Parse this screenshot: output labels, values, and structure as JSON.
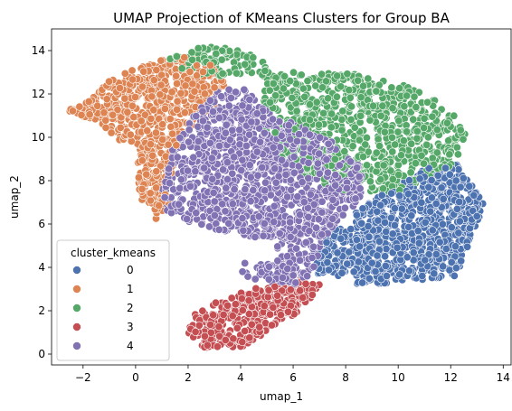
{
  "chart_data": {
    "type": "scatter",
    "title": "UMAP Projection of KMeans Clusters for Group BA",
    "xlabel": "umap_1",
    "ylabel": "umap_2",
    "xlim": [
      -3.2,
      14.3
    ],
    "ylim": [
      -0.5,
      15.0
    ],
    "xticks": [
      -2,
      0,
      2,
      4,
      6,
      8,
      10,
      12,
      14
    ],
    "yticks": [
      0,
      2,
      4,
      6,
      8,
      10,
      12,
      14
    ],
    "grid": false,
    "legend": {
      "title": "cluster_kmeans",
      "placement": "lower-left"
    },
    "series": [
      {
        "name": "0",
        "color": "#4c72b0"
      },
      {
        "name": "1",
        "color": "#dd8452"
      },
      {
        "name": "2",
        "color": "#55a868"
      },
      {
        "name": "3",
        "color": "#c44e52"
      },
      {
        "name": "4",
        "color": "#8172b3"
      }
    ],
    "clusters": [
      {
        "series": "0",
        "count": 950,
        "regions": [
          [
            8.4,
            13.3,
            3.2,
            8.9
          ],
          [
            6.8,
            8.6,
            3.6,
            5.8
          ]
        ],
        "hull": [
          [
            12.2,
            8.8
          ],
          [
            13.3,
            7.0
          ],
          [
            12.6,
            4.8
          ],
          [
            12.2,
            3.6
          ],
          [
            10.0,
            3.3
          ],
          [
            8.6,
            3.2
          ],
          [
            7.0,
            3.4
          ],
          [
            6.8,
            4.6
          ],
          [
            7.4,
            5.8
          ],
          [
            8.4,
            6.6
          ],
          [
            9.6,
            7.6
          ],
          [
            11.0,
            8.6
          ]
        ]
      },
      {
        "series": "1",
        "count": 700,
        "regions": [
          [
            -2.6,
            3.5,
            9.6,
            13.8
          ],
          [
            0.0,
            2.0,
            6.2,
            9.6
          ]
        ],
        "hull": [
          [
            -2.6,
            11.2
          ],
          [
            -1.0,
            12.6
          ],
          [
            0.4,
            13.4
          ],
          [
            1.6,
            13.8
          ],
          [
            3.2,
            13.4
          ],
          [
            3.4,
            12.4
          ],
          [
            3.0,
            11.4
          ],
          [
            2.0,
            10.4
          ],
          [
            1.6,
            9.4
          ],
          [
            1.4,
            8.0
          ],
          [
            1.2,
            6.6
          ],
          [
            0.8,
            6.2
          ],
          [
            0.2,
            7.2
          ],
          [
            0.0,
            8.6
          ],
          [
            -0.6,
            9.8
          ],
          [
            -1.6,
            10.8
          ]
        ]
      },
      {
        "series": "2",
        "count": 950,
        "regions": [
          [
            4.8,
            12.7,
            7.5,
            13.1
          ],
          [
            1.2,
            5.2,
            12.8,
            14.3
          ]
        ],
        "hull": [
          [
            1.2,
            13.6
          ],
          [
            2.8,
            14.3
          ],
          [
            4.6,
            13.8
          ],
          [
            5.2,
            13.0
          ],
          [
            8.0,
            13.0
          ],
          [
            10.2,
            12.4
          ],
          [
            11.8,
            11.6
          ],
          [
            12.6,
            10.2
          ],
          [
            12.2,
            8.8
          ],
          [
            10.6,
            7.8
          ],
          [
            9.6,
            7.2
          ],
          [
            8.0,
            7.2
          ],
          [
            6.8,
            8.0
          ],
          [
            5.6,
            9.0
          ],
          [
            4.8,
            10.2
          ],
          [
            3.2,
            12.0
          ]
        ]
      },
      {
        "series": "3",
        "count": 380,
        "regions": [
          [
            2.0,
            6.4,
            0.3,
            3.0
          ],
          [
            4.4,
            7.0,
            1.8,
            3.6
          ]
        ],
        "hull": [
          [
            2.0,
            1.0
          ],
          [
            2.2,
            1.8
          ],
          [
            3.4,
            2.6
          ],
          [
            4.4,
            3.0
          ],
          [
            5.6,
            3.5
          ],
          [
            6.4,
            3.6
          ],
          [
            7.0,
            3.2
          ],
          [
            6.6,
            2.4
          ],
          [
            5.8,
            1.6
          ],
          [
            5.0,
            1.0
          ],
          [
            4.0,
            0.3
          ],
          [
            2.6,
            0.3
          ]
        ]
      },
      {
        "series": "4",
        "count": 1300,
        "regions": [
          [
            1.0,
            8.6,
            5.4,
            11.4
          ],
          [
            2.4,
            5.6,
            11.0,
            12.4
          ],
          [
            5.4,
            7.2,
            3.3,
            5.6
          ],
          [
            3.8,
            6.2,
            3.0,
            4.2
          ]
        ],
        "hull": [
          [
            1.0,
            7.8
          ],
          [
            1.4,
            9.4
          ],
          [
            2.2,
            11.0
          ],
          [
            3.0,
            12.2
          ],
          [
            4.4,
            12.2
          ],
          [
            5.2,
            11.0
          ],
          [
            6.2,
            10.6
          ],
          [
            7.8,
            9.6
          ],
          [
            8.6,
            8.6
          ],
          [
            8.6,
            7.2
          ],
          [
            7.6,
            6.0
          ],
          [
            7.0,
            4.4
          ],
          [
            6.4,
            3.2
          ],
          [
            5.0,
            3.2
          ],
          [
            4.0,
            3.6
          ],
          [
            4.2,
            5.4
          ],
          [
            2.6,
            5.8
          ],
          [
            1.2,
            6.4
          ]
        ]
      }
    ]
  }
}
